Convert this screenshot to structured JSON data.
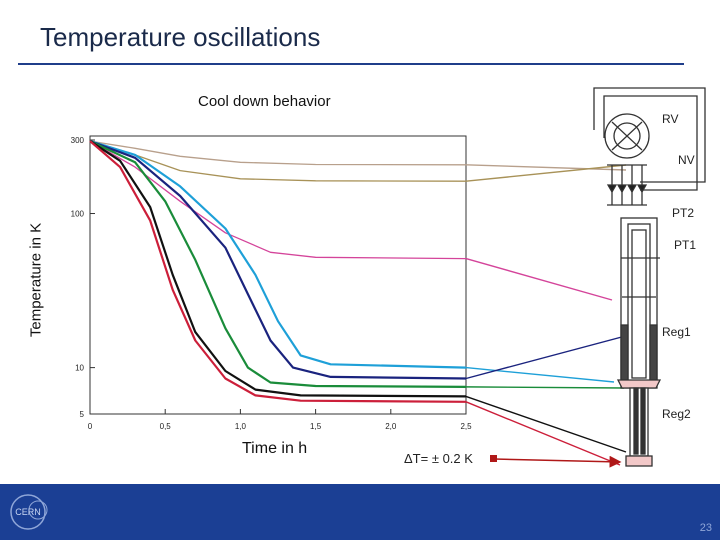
{
  "slide": {
    "title": "Temperature oscillations",
    "page_number": "23",
    "logo_text": "CERN"
  },
  "chart_data": {
    "type": "line",
    "title": "Cool down behavior",
    "xlabel": "Time in h",
    "ylabel": "Temperature in K",
    "yscale": "log",
    "xlim": [
      0,
      2.5
    ],
    "ylim": [
      5,
      300
    ],
    "x_ticks": [
      "0",
      "0,5",
      "1,0",
      "1,5",
      "2,0",
      "2,5"
    ],
    "y_ticks": [
      "300",
      "100",
      "10",
      "5"
    ],
    "series": [
      {
        "color": "#b8a08c",
        "x": [
          0,
          0.3,
          0.6,
          1.0,
          1.5,
          2.5
        ],
        "y": [
          295,
          265,
          235,
          215,
          208,
          207
        ]
      },
      {
        "color": "#a89258",
        "x": [
          0,
          0.3,
          0.6,
          1.0,
          1.5,
          2.5
        ],
        "y": [
          295,
          240,
          190,
          168,
          163,
          162
        ]
      },
      {
        "color": "#d4449a",
        "x": [
          0,
          0.3,
          0.6,
          0.9,
          1.2,
          1.5,
          2.5
        ],
        "y": [
          295,
          200,
          120,
          75,
          56,
          52,
          51
        ]
      },
      {
        "color": "#1ea0d8",
        "x": [
          0,
          0.3,
          0.6,
          0.9,
          1.1,
          1.25,
          1.4,
          1.6,
          2.5
        ],
        "y": [
          295,
          240,
          150,
          80,
          40,
          20,
          12,
          10.5,
          10
        ]
      },
      {
        "color": "#1a237e",
        "x": [
          0,
          0.3,
          0.6,
          0.9,
          1.05,
          1.2,
          1.35,
          1.6,
          2.5
        ],
        "y": [
          295,
          230,
          130,
          60,
          30,
          15,
          10,
          8.7,
          8.5
        ]
      },
      {
        "color": "#1a8c3a",
        "x": [
          0,
          0.3,
          0.5,
          0.7,
          0.9,
          1.05,
          1.2,
          1.5,
          2.5
        ],
        "y": [
          295,
          215,
          120,
          50,
          18,
          10,
          8,
          7.6,
          7.5
        ]
      },
      {
        "color": "#111111",
        "x": [
          0,
          0.2,
          0.4,
          0.55,
          0.7,
          0.9,
          1.1,
          1.4,
          2.5
        ],
        "y": [
          295,
          220,
          110,
          40,
          17,
          9.5,
          7.2,
          6.6,
          6.5
        ]
      },
      {
        "color": "#cc1f3a",
        "x": [
          0,
          0.2,
          0.4,
          0.55,
          0.7,
          0.9,
          1.1,
          1.4,
          2.5
        ],
        "y": [
          295,
          200,
          90,
          32,
          15,
          8.5,
          6.6,
          6.1,
          6.0
        ]
      }
    ]
  },
  "diagram": {
    "labels": [
      "RV",
      "NV",
      "PT2",
      "PT1",
      "Reg1",
      "Reg2"
    ],
    "annotation": "ΔT= ± 0.2 K"
  }
}
